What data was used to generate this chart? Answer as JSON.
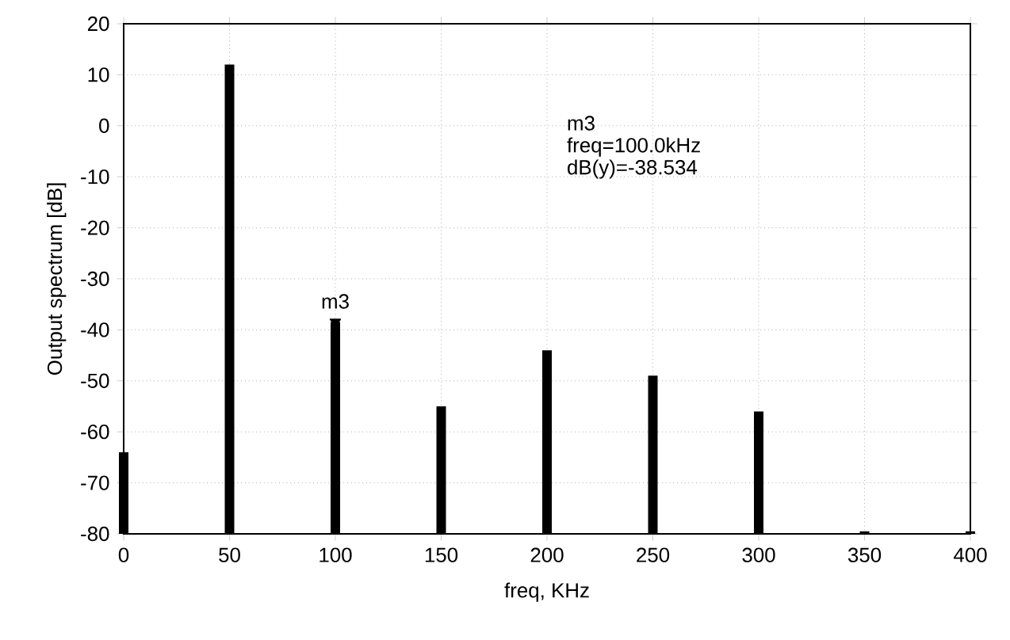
{
  "chart_data": {
    "type": "bar",
    "x": [
      0,
      50,
      100,
      150,
      200,
      250,
      300,
      350,
      400
    ],
    "base": [
      -80,
      -80,
      -80,
      -80,
      -80,
      -80,
      -80,
      -80,
      -80
    ],
    "values": [
      16,
      92,
      41.5,
      25,
      36,
      31,
      24,
      0.5,
      0.5
    ],
    "color": "#000000",
    "xlim": [
      0,
      400
    ],
    "xticks": [
      0,
      50,
      100,
      150,
      200,
      250,
      300,
      350,
      400
    ],
    "ylim": [
      -80,
      20
    ],
    "yticks": [
      -80,
      -70,
      -60,
      -50,
      -40,
      -30,
      -20,
      -10,
      0,
      10,
      20
    ],
    "xlabel": "freq, KHz",
    "ylabel": "Output spectrum [dB]",
    "grid": true,
    "annotations": [
      {
        "text": "m3",
        "x": 100,
        "y": -38.5
      },
      "m3",
      "freq=100.0kHz",
      "dB(y)=-38.534"
    ]
  }
}
